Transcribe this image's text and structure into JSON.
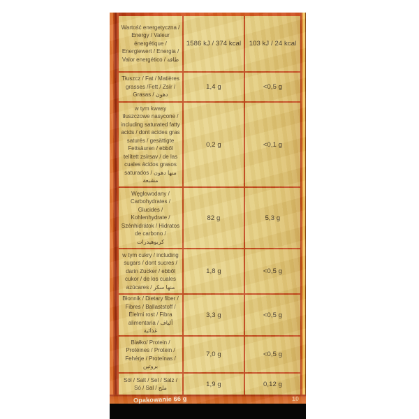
{
  "page": {
    "background_color": "#ffffff"
  },
  "package": {
    "description": "photo of back of snack package with multilingual nutrition table",
    "colors": {
      "foil_yellow": "#e8d489",
      "grid_orange_red": "#c2451a",
      "left_edge_orange": "#e17330",
      "right_edge_gold": "#f2c55e",
      "bottom_strip_orange": "#dd702a",
      "bottom_band_black": "#070605",
      "label_text": "#47392a"
    },
    "bottom_strip": {
      "left_text": "Opakowanie 66 g",
      "right_text": "10"
    }
  },
  "nutrition_table": {
    "columns": [
      "nutrient",
      "value_per_100g",
      "value_per_portion"
    ],
    "rows": [
      {
        "label": "Wartość energetyczna / Energy / Valeur énergétique / Energiewert / Energia / Valor energético / طاقة",
        "v1": "1586 kJ / 374 kcal",
        "v2": "103 kJ / 24 kcal"
      },
      {
        "label": "Tłuszcz / Fat / Matières grasses /Fett / Zsír / Grasas / دهون",
        "v1": "1,4 g",
        "v2": "<0,5 g"
      },
      {
        "label": "w tym kwasy tłuszczowe nasycone / including saturated fatty acids / dont acides gras saturés / gesättigte Fettsäuren / ebből telített zsírsav / de las cuales ácidos grasos saturados / منها دهون مشبعة",
        "v1": "0,2 g",
        "v2": "<0,1 g"
      },
      {
        "label": "Węglowodany / Carbohydrates / Glucides / Kohlenhydrate / Szénhidrátok / Hidratos de carbono / كربوهيدرات",
        "v1": "82 g",
        "v2": "5,3 g"
      },
      {
        "label": "w tym cukry / including sugars / dont sucres / darin Zucker / ebből cukor / de los cuales azúcares / منها سكر",
        "v1": "1,8 g",
        "v2": "<0,5 g"
      },
      {
        "label": "Błonnik / Dietary fiber / Fibres / Ballaststoff / Élelmi rost / Fibra alimentaria / ألياف غذائية",
        "v1": "3,3 g",
        "v2": "<0,5 g"
      },
      {
        "label": "Białko/ Protein / Protéines / Protein / Fehérje / Proteínas / بروتين",
        "v1": "7,0 g",
        "v2": "<0,5 g"
      },
      {
        "label": "Sól / Salt / Sel / Salz / Só / Sal / ملح",
        "v1": "1,9 g",
        "v2": "0,12 g"
      }
    ]
  }
}
